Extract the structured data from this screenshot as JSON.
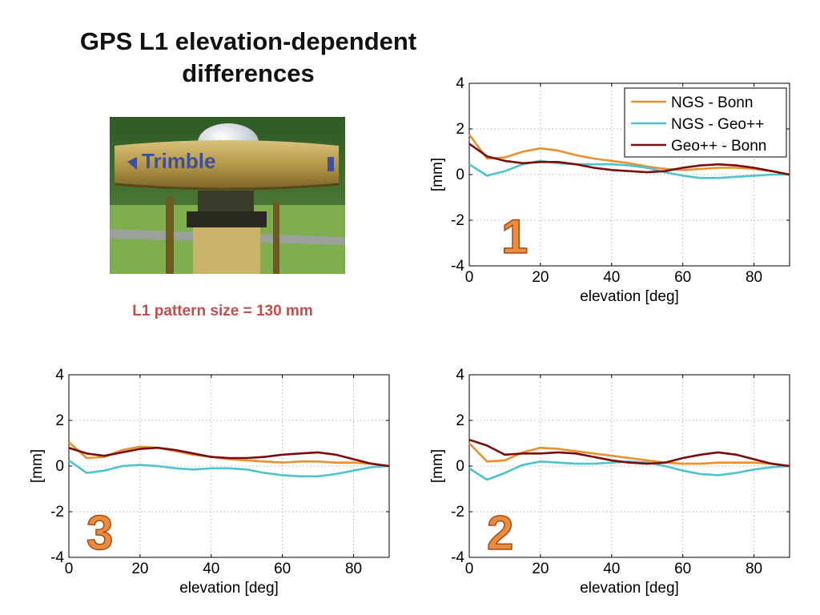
{
  "slide": {
    "title_line1": "GPS L1 elevation-dependent",
    "title_line2": "differences",
    "caption": "L1 pattern size = 130 mm",
    "photo_brand": "Trimble"
  },
  "colors": {
    "ngs_bonn": "#e8912d",
    "ngs_geopp": "#4cc3cf",
    "geopp_bonn": "#7a0c0c",
    "number_label": "#ee8a3c",
    "caption": "#c0504d"
  },
  "chart_data": [
    {
      "type": "line",
      "panel_label": "1",
      "xlabel": "elevation [deg]",
      "ylabel": "[mm]",
      "xlim": [
        0,
        90
      ],
      "ylim": [
        -4,
        4
      ],
      "xticks": [
        "0",
        "20",
        "40",
        "60",
        "80"
      ],
      "yticks": [
        "4",
        "2",
        "0",
        "-2",
        "-4"
      ],
      "grid": true,
      "legend": "top-right",
      "x": [
        0,
        5,
        10,
        15,
        20,
        25,
        30,
        35,
        40,
        45,
        50,
        55,
        60,
        65,
        70,
        75,
        80,
        85,
        90
      ],
      "series": [
        {
          "name": "NGS - Bonn",
          "color": "#e8912d",
          "values": [
            1.75,
            0.7,
            0.75,
            1.0,
            1.15,
            1.05,
            0.85,
            0.7,
            0.6,
            0.5,
            0.35,
            0.25,
            0.2,
            0.25,
            0.3,
            0.3,
            0.25,
            0.15,
            0.0
          ]
        },
        {
          "name": "NGS - Geo++",
          "color": "#4cc3cf",
          "values": [
            0.45,
            -0.05,
            0.15,
            0.45,
            0.6,
            0.5,
            0.45,
            0.45,
            0.45,
            0.4,
            0.3,
            0.1,
            -0.05,
            -0.15,
            -0.15,
            -0.1,
            -0.05,
            0.0,
            0.0
          ]
        },
        {
          "name": "Geo++ - Bonn",
          "color": "#7a0c0c",
          "values": [
            1.35,
            0.8,
            0.6,
            0.5,
            0.55,
            0.55,
            0.45,
            0.3,
            0.2,
            0.15,
            0.1,
            0.15,
            0.3,
            0.4,
            0.45,
            0.4,
            0.3,
            0.15,
            0.0
          ]
        }
      ]
    },
    {
      "type": "line",
      "panel_label": "2",
      "xlabel": "elevation [deg]",
      "ylabel": "[mm]",
      "xlim": [
        0,
        90
      ],
      "ylim": [
        -4,
        4
      ],
      "xticks": [
        "0",
        "20",
        "40",
        "60",
        "80"
      ],
      "yticks": [
        "4",
        "2",
        "0",
        "-2",
        "-4"
      ],
      "grid": true,
      "x": [
        0,
        5,
        10,
        15,
        20,
        25,
        30,
        35,
        40,
        45,
        50,
        55,
        60,
        65,
        70,
        75,
        80,
        85,
        90
      ],
      "series": [
        {
          "color": "#e8912d",
          "values": [
            1.0,
            0.2,
            0.25,
            0.6,
            0.8,
            0.75,
            0.65,
            0.55,
            0.45,
            0.35,
            0.25,
            0.15,
            0.1,
            0.1,
            0.15,
            0.15,
            0.15,
            0.1,
            0.0
          ]
        },
        {
          "color": "#4cc3cf",
          "values": [
            -0.1,
            -0.6,
            -0.3,
            0.05,
            0.2,
            0.15,
            0.1,
            0.1,
            0.15,
            0.2,
            0.15,
            0.0,
            -0.2,
            -0.35,
            -0.4,
            -0.3,
            -0.15,
            -0.05,
            0.0
          ]
        },
        {
          "color": "#7a0c0c",
          "values": [
            1.15,
            0.9,
            0.5,
            0.55,
            0.55,
            0.6,
            0.55,
            0.4,
            0.25,
            0.15,
            0.1,
            0.15,
            0.35,
            0.5,
            0.6,
            0.5,
            0.3,
            0.1,
            0.0
          ]
        }
      ]
    },
    {
      "type": "line",
      "panel_label": "3",
      "xlabel": "elevation [deg]",
      "ylabel": "[mm]",
      "xlim": [
        0,
        90
      ],
      "ylim": [
        -4,
        4
      ],
      "xticks": [
        "0",
        "20",
        "40",
        "60",
        "80"
      ],
      "yticks": [
        "4",
        "2",
        "0",
        "-2",
        "-4"
      ],
      "grid": true,
      "x": [
        0,
        5,
        10,
        15,
        20,
        25,
        30,
        35,
        40,
        45,
        50,
        55,
        60,
        65,
        70,
        75,
        80,
        85,
        90
      ],
      "series": [
        {
          "color": "#e8912d",
          "values": [
            1.05,
            0.35,
            0.4,
            0.7,
            0.85,
            0.8,
            0.65,
            0.5,
            0.4,
            0.3,
            0.25,
            0.2,
            0.15,
            0.2,
            0.2,
            0.15,
            0.15,
            0.1,
            0.0
          ]
        },
        {
          "color": "#4cc3cf",
          "values": [
            0.25,
            -0.3,
            -0.2,
            0.0,
            0.05,
            0.0,
            -0.1,
            -0.15,
            -0.1,
            -0.1,
            -0.15,
            -0.3,
            -0.4,
            -0.45,
            -0.45,
            -0.35,
            -0.2,
            -0.05,
            0.0
          ]
        },
        {
          "color": "#7a0c0c",
          "values": [
            0.8,
            0.55,
            0.45,
            0.6,
            0.75,
            0.8,
            0.7,
            0.55,
            0.4,
            0.35,
            0.35,
            0.4,
            0.5,
            0.55,
            0.6,
            0.5,
            0.3,
            0.1,
            0.0
          ]
        }
      ]
    }
  ]
}
